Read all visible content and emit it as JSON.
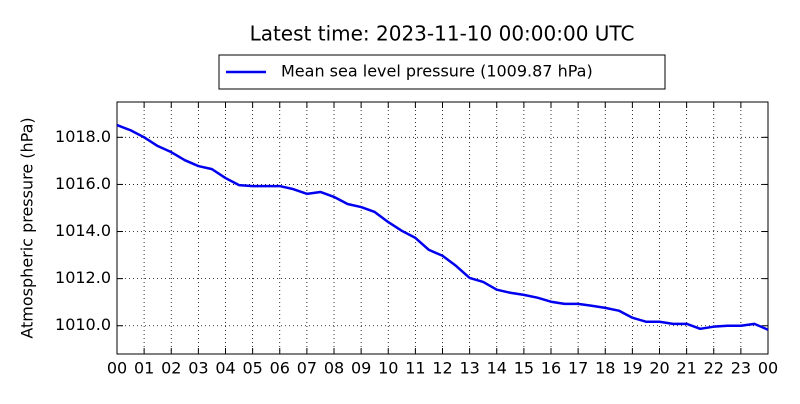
{
  "chart_data": {
    "type": "line",
    "title": "Latest time: 2023-11-10 00:00:00 UTC",
    "y_label": "Atmospheric pressure (hPa)",
    "x": [
      0,
      0.5,
      1,
      1.5,
      2,
      2.5,
      3,
      3.5,
      4,
      4.5,
      5,
      5.5,
      6,
      6.5,
      7,
      7.5,
      8,
      8.5,
      9,
      9.5,
      10,
      10.5,
      11,
      11.5,
      12,
      12.5,
      13,
      13.5,
      14,
      14.5,
      15,
      15.5,
      16,
      16.5,
      17,
      17.5,
      18,
      18.5,
      19,
      19.5,
      20,
      20.5,
      21,
      21.5,
      22,
      22.5,
      23,
      23.5,
      24
    ],
    "series": [
      {
        "name": "Mean sea level pressure (1009.87 hPa)",
        "color": "#0000ee",
        "values": [
          1018.52,
          1018.3,
          1018.0,
          1017.63,
          1017.37,
          1017.03,
          1016.78,
          1016.65,
          1016.27,
          1015.97,
          1015.93,
          1015.93,
          1015.93,
          1015.8,
          1015.6,
          1015.68,
          1015.47,
          1015.17,
          1015.04,
          1014.83,
          1014.4,
          1014.03,
          1013.73,
          1013.22,
          1012.97,
          1012.54,
          1012.03,
          1011.86,
          1011.53,
          1011.4,
          1011.31,
          1011.19,
          1011.02,
          1010.93,
          1010.93,
          1010.85,
          1010.76,
          1010.64,
          1010.34,
          1010.17,
          1010.17,
          1010.08,
          1010.08,
          1009.87,
          1009.96,
          1010.0,
          1010.0,
          1010.08,
          1009.83
        ]
      }
    ],
    "xlim": [
      0,
      24
    ],
    "xticks": [
      {
        "value": 0,
        "label": "00"
      },
      {
        "value": 1,
        "label": "01"
      },
      {
        "value": 2,
        "label": "02"
      },
      {
        "value": 3,
        "label": "03"
      },
      {
        "value": 4,
        "label": "04"
      },
      {
        "value": 5,
        "label": "05"
      },
      {
        "value": 6,
        "label": "06"
      },
      {
        "value": 7,
        "label": "07"
      },
      {
        "value": 8,
        "label": "08"
      },
      {
        "value": 9,
        "label": "09"
      },
      {
        "value": 10,
        "label": "10"
      },
      {
        "value": 11,
        "label": "11"
      },
      {
        "value": 12,
        "label": "12"
      },
      {
        "value": 13,
        "label": "13"
      },
      {
        "value": 14,
        "label": "14"
      },
      {
        "value": 15,
        "label": "15"
      },
      {
        "value": 16,
        "label": "16"
      },
      {
        "value": 17,
        "label": "17"
      },
      {
        "value": 18,
        "label": "18"
      },
      {
        "value": 19,
        "label": "19"
      },
      {
        "value": 20,
        "label": "20"
      },
      {
        "value": 21,
        "label": "21"
      },
      {
        "value": 22,
        "label": "22"
      },
      {
        "value": 23,
        "label": "23"
      },
      {
        "value": 24,
        "label": "00"
      }
    ],
    "ylim": [
      1008.8,
      1019.5
    ],
    "yticks": [
      {
        "value": 1010,
        "label": "1010.0"
      },
      {
        "value": 1012,
        "label": "1012.0"
      },
      {
        "value": 1014,
        "label": "1014.0"
      },
      {
        "value": 1016,
        "label": "1016.0"
      },
      {
        "value": 1018,
        "label": "1018.0"
      }
    ],
    "grid": true,
    "legend": "top"
  }
}
